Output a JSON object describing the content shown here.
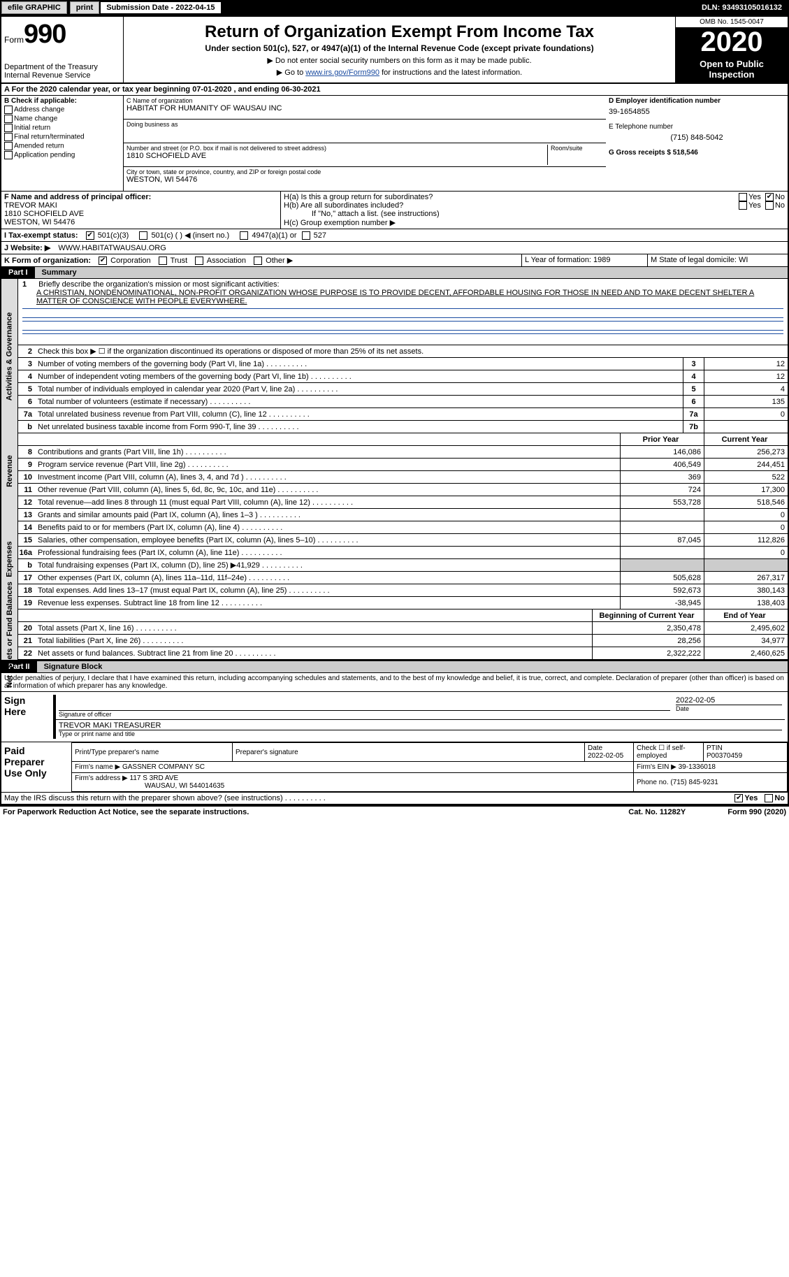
{
  "topbar": {
    "efile": "efile GRAPHIC",
    "print": "print",
    "sub_label": "Submission Date - 2022-04-15",
    "dln": "DLN: 93493105016132"
  },
  "header": {
    "form_prefix": "Form",
    "form_no": "990",
    "dept": "Department of the Treasury",
    "irs": "Internal Revenue Service",
    "title": "Return of Organization Exempt From Income Tax",
    "subtitle": "Under section 501(c), 527, or 4947(a)(1) of the Internal Revenue Code (except private foundations)",
    "instr1": "▶ Do not enter social security numbers on this form as it may be made public.",
    "instr2_pre": "▶ Go to ",
    "instr2_link": "www.irs.gov/Form990",
    "instr2_post": " for instructions and the latest information.",
    "omb": "OMB No. 1545-0047",
    "year": "2020",
    "open": "Open to Public Inspection"
  },
  "period": "A For the 2020 calendar year, or tax year beginning 07-01-2020    , and ending 06-30-2021",
  "blockB": {
    "hdr": "B Check if applicable:",
    "items": [
      "Address change",
      "Name change",
      "Initial return",
      "Final return/terminated",
      "Amended return",
      "Application pending"
    ]
  },
  "blockC": {
    "name_label": "C Name of organization",
    "name": "HABITAT FOR HUMANITY OF WAUSAU INC",
    "dba_label": "Doing business as",
    "addr_label": "Number and street (or P.O. box if mail is not delivered to street address)",
    "room_label": "Room/suite",
    "addr": "1810 SCHOFIELD AVE",
    "city_label": "City or town, state or province, country, and ZIP or foreign postal code",
    "city": "WESTON, WI  54476"
  },
  "blockD": {
    "ein_label": "D Employer identification number",
    "ein": "39-1654855",
    "phone_label": "E Telephone number",
    "phone": "(715) 848-5042",
    "gross_label": "G Gross receipts $ 518,546"
  },
  "blockF": {
    "label": "F Name and address of principal officer:",
    "name": "TREVOR MAKI",
    "addr1": "1810 SCHOFIELD AVE",
    "addr2": "WESTON, WI  54476"
  },
  "blockH": {
    "ha": "H(a)  Is this a group return for subordinates?",
    "hb": "H(b)  Are all subordinates included?",
    "hb_note": "If \"No,\" attach a list. (see instructions)",
    "hc": "H(c)  Group exemption number ▶"
  },
  "taxexempt": {
    "label": "I    Tax-exempt status:",
    "o1": "501(c)(3)",
    "o2": "501(c) (  ) ◀ (insert no.)",
    "o3": "4947(a)(1) or",
    "o4": "527"
  },
  "website": {
    "label": "J    Website: ▶",
    "value": "WWW.HABITATWAUSAU.ORG"
  },
  "formof": {
    "label": "K Form of organization:",
    "o1": "Corporation",
    "o2": "Trust",
    "o3": "Association",
    "o4": "Other ▶"
  },
  "lm": {
    "l": "L Year of formation: 1989",
    "m": "M State of legal domicile: WI"
  },
  "part1": {
    "tag": "Part I",
    "title": "Summary"
  },
  "mission": {
    "num": "1",
    "label": "Briefly describe the organization's mission or most significant activities:",
    "text": "A CHRISTIAN, NONDENOMINATIONAL, NON-PROFIT ORGANIZATION WHOSE PURPOSE IS TO PROVIDE DECENT, AFFORDABLE HOUSING FOR THOSE IN NEED AND TO MAKE DECENT SHELTER A MATTER OF CONSCIENCE WITH PEOPLE EVERYWHERE."
  },
  "line2": {
    "num": "2",
    "txt": "Check this box ▶ ☐  if the organization discontinued its operations or disposed of more than 25% of its net assets."
  },
  "gov_lines": [
    {
      "num": "3",
      "txt": "Number of voting members of the governing body (Part VI, line 1a)",
      "box": "3",
      "val": "12"
    },
    {
      "num": "4",
      "txt": "Number of independent voting members of the governing body (Part VI, line 1b)",
      "box": "4",
      "val": "12"
    },
    {
      "num": "5",
      "txt": "Total number of individuals employed in calendar year 2020 (Part V, line 2a)",
      "box": "5",
      "val": "4"
    },
    {
      "num": "6",
      "txt": "Total number of volunteers (estimate if necessary)",
      "box": "6",
      "val": "135"
    },
    {
      "num": "7a",
      "txt": "Total unrelated business revenue from Part VIII, column (C), line 12",
      "box": "7a",
      "val": "0"
    },
    {
      "num": "b",
      "txt": "Net unrelated business taxable income from Form 990-T, line 39",
      "box": "7b",
      "val": ""
    }
  ],
  "colhdr": {
    "prior": "Prior Year",
    "current": "Current Year"
  },
  "rev_lines": [
    {
      "num": "8",
      "txt": "Contributions and grants (Part VIII, line 1h)",
      "py": "146,086",
      "cy": "256,273"
    },
    {
      "num": "9",
      "txt": "Program service revenue (Part VIII, line 2g)",
      "py": "406,549",
      "cy": "244,451"
    },
    {
      "num": "10",
      "txt": "Investment income (Part VIII, column (A), lines 3, 4, and 7d )",
      "py": "369",
      "cy": "522"
    },
    {
      "num": "11",
      "txt": "Other revenue (Part VIII, column (A), lines 5, 6d, 8c, 9c, 10c, and 11e)",
      "py": "724",
      "cy": "17,300"
    },
    {
      "num": "12",
      "txt": "Total revenue—add lines 8 through 11 (must equal Part VIII, column (A), line 12)",
      "py": "553,728",
      "cy": "518,546"
    }
  ],
  "exp_lines": [
    {
      "num": "13",
      "txt": "Grants and similar amounts paid (Part IX, column (A), lines 1–3 )",
      "py": "",
      "cy": "0"
    },
    {
      "num": "14",
      "txt": "Benefits paid to or for members (Part IX, column (A), line 4)",
      "py": "",
      "cy": "0"
    },
    {
      "num": "15",
      "txt": "Salaries, other compensation, employee benefits (Part IX, column (A), lines 5–10)",
      "py": "87,045",
      "cy": "112,826"
    },
    {
      "num": "16a",
      "txt": "Professional fundraising fees (Part IX, column (A), line 11e)",
      "py": "",
      "cy": "0"
    },
    {
      "num": "b",
      "txt": "Total fundraising expenses (Part IX, column (D), line 25) ▶41,929",
      "py": "GREY",
      "cy": "GREY"
    },
    {
      "num": "17",
      "txt": "Other expenses (Part IX, column (A), lines 11a–11d, 11f–24e)",
      "py": "505,628",
      "cy": "267,317"
    },
    {
      "num": "18",
      "txt": "Total expenses. Add lines 13–17 (must equal Part IX, column (A), line 25)",
      "py": "592,673",
      "cy": "380,143"
    },
    {
      "num": "19",
      "txt": "Revenue less expenses. Subtract line 18 from line 12",
      "py": "-38,945",
      "cy": "138,403"
    }
  ],
  "net_hdr": {
    "prior": "Beginning of Current Year",
    "current": "End of Year"
  },
  "net_lines": [
    {
      "num": "20",
      "txt": "Total assets (Part X, line 16)",
      "py": "2,350,478",
      "cy": "2,495,602"
    },
    {
      "num": "21",
      "txt": "Total liabilities (Part X, line 26)",
      "py": "28,256",
      "cy": "34,977"
    },
    {
      "num": "22",
      "txt": "Net assets or fund balances. Subtract line 21 from line 20",
      "py": "2,322,222",
      "cy": "2,460,625"
    }
  ],
  "sidebar_labels": {
    "gov": "Activities & Governance",
    "rev": "Revenue",
    "exp": "Expenses",
    "net": "Net Assets or Fund Balances"
  },
  "part2": {
    "tag": "Part II",
    "title": "Signature Block"
  },
  "declaration": "Under penalties of perjury, I declare that I have examined this return, including accompanying schedules and statements, and to the best of my knowledge and belief, it is true, correct, and complete. Declaration of preparer (other than officer) is based on all information of which preparer has any knowledge.",
  "sign": {
    "label1": "Sign",
    "label2": "Here",
    "sig_label": "Signature of officer",
    "date": "2022-02-05",
    "date_label": "Date",
    "name": "TREVOR MAKI TREASURER",
    "name_label": "Type or print name and title"
  },
  "preparer": {
    "label1": "Paid",
    "label2": "Preparer",
    "label3": "Use Only",
    "col_name": "Print/Type preparer's name",
    "col_sig": "Preparer's signature",
    "col_date": "Date",
    "date": "2022-02-05",
    "col_self": "Check ☐ if self-employed",
    "col_ptin": "PTIN",
    "ptin": "P00370459",
    "firm_name_label": "Firm's name    ▶",
    "firm_name": "GASSNER COMPANY SC",
    "firm_ein_label": "Firm's EIN ▶",
    "firm_ein": "39-1336018",
    "firm_addr_label": "Firm's address ▶",
    "firm_addr1": "117 S 3RD AVE",
    "firm_addr2": "WAUSAU, WI  544014635",
    "firm_phone_label": "Phone no.",
    "firm_phone": "(715) 845-9231"
  },
  "discuss": {
    "txt": "May the IRS discuss this return with the preparer shown above? (see instructions)",
    "yes": "Yes",
    "no": "No"
  },
  "footer": {
    "pra": "For Paperwork Reduction Act Notice, see the separate instructions.",
    "cat": "Cat. No. 11282Y",
    "form": "Form 990 (2020)"
  },
  "colors": {
    "link": "#1a4ba0",
    "grey": "#cccccc"
  }
}
